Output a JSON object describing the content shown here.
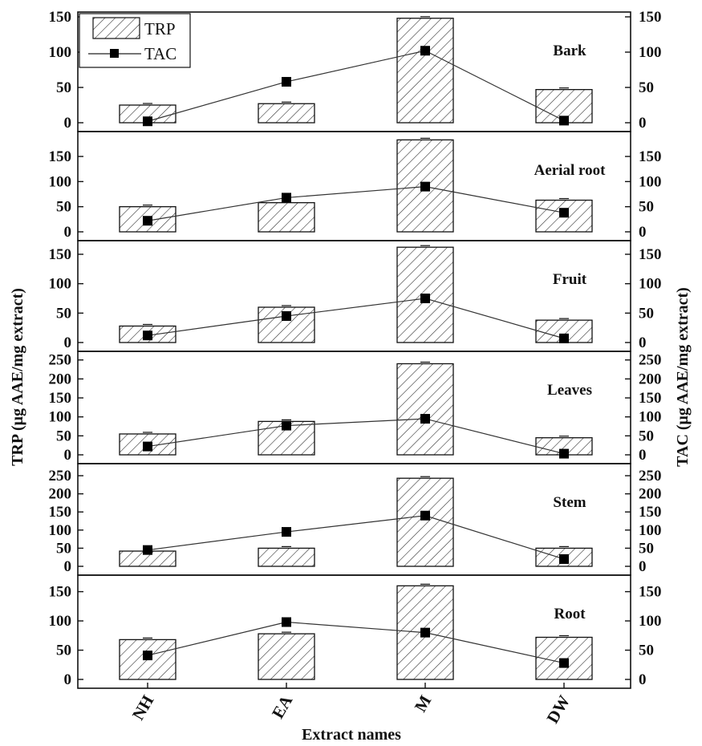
{
  "chart_data": {
    "type": "bar",
    "categories": [
      "NH",
      "EA",
      "M",
      "DW"
    ],
    "xlabel": "Extract names",
    "ylabel_left": "TRP (μg AAE/mg extract)",
    "ylabel_right": "TAC (μg AAE/mg extract)",
    "legend": {
      "placement": "top-left",
      "bar_label": "TRP",
      "line_label": "TAC"
    },
    "bar_series_name": "TRP",
    "line_series_name": "TAC",
    "panels": [
      {
        "title": "Bark",
        "ylim": [
          0,
          150
        ],
        "ticks": [
          0,
          50,
          100,
          150
        ],
        "trp": [
          25,
          27,
          148,
          47
        ],
        "tac": [
          2,
          58,
          102,
          3
        ]
      },
      {
        "title": "Aerial root",
        "ylim": [
          0,
          190
        ],
        "ticks": [
          0,
          50,
          100,
          150
        ],
        "trp": [
          50,
          58,
          183,
          63
        ],
        "tac": [
          22,
          68,
          90,
          38
        ]
      },
      {
        "title": "Fruit",
        "ylim": [
          0,
          165
        ],
        "ticks": [
          0,
          50,
          100,
          150
        ],
        "trp": [
          28,
          60,
          162,
          38
        ],
        "tac": [
          12,
          45,
          75,
          7
        ]
      },
      {
        "title": "Leaves",
        "ylim": [
          0,
          260
        ],
        "ticks": [
          0,
          50,
          100,
          150,
          200,
          250
        ],
        "trp": [
          55,
          88,
          240,
          45
        ],
        "tac": [
          22,
          77,
          95,
          3
        ]
      },
      {
        "title": "Stem",
        "ylim": [
          0,
          270
        ],
        "ticks": [
          0,
          50,
          100,
          150,
          200,
          250
        ],
        "trp": [
          42,
          50,
          243,
          50
        ],
        "tac": [
          45,
          95,
          140,
          20
        ]
      },
      {
        "title": "Root",
        "ylim": [
          0,
          170
        ],
        "ticks": [
          0,
          50,
          100,
          150
        ],
        "trp": [
          68,
          78,
          160,
          72
        ],
        "tac": [
          41,
          98,
          80,
          28
        ]
      }
    ]
  }
}
